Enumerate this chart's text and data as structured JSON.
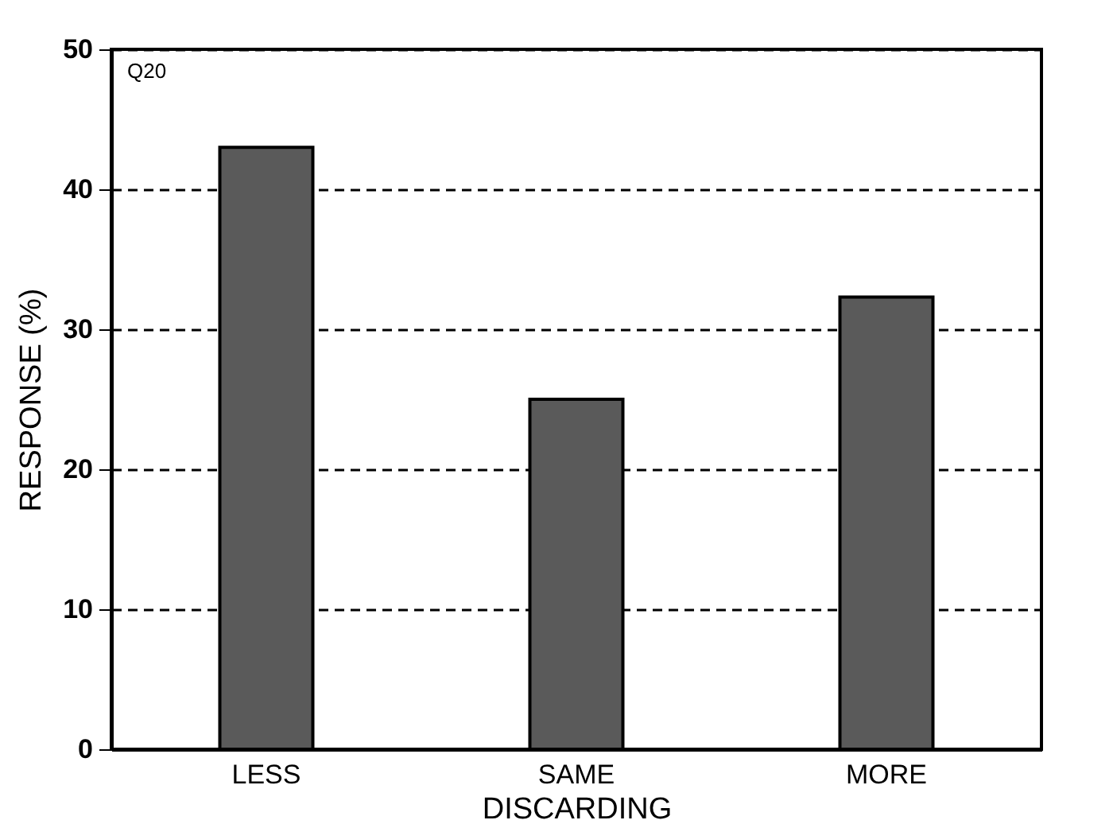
{
  "chart_data": {
    "type": "bar",
    "xlabel": "DISCARDING",
    "ylabel": "RESPONSE  (%)",
    "categories": [
      "LESS",
      "SAME",
      "MORE"
    ],
    "values": [
      43,
      25,
      32.3
    ],
    "color": "#5a5a5a",
    "ylim": [
      0,
      50
    ],
    "yticks": [
      0,
      10,
      20,
      30,
      40,
      50
    ],
    "grid": "y",
    "line_style": "dashed",
    "annotations": [
      "Q20"
    ]
  }
}
